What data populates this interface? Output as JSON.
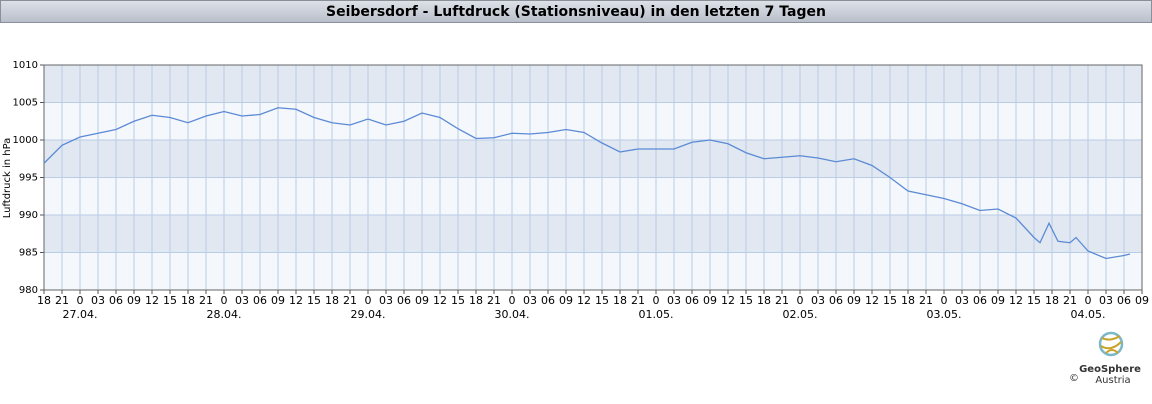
{
  "chart_data": {
    "type": "line",
    "title": "Seibersdorf - Luftdruck (Stationsniveau) in den letzten 7 Tagen",
    "ylabel": "Luftdruck in hPa",
    "color": "#5b8ad6",
    "grid": true,
    "xlim": [
      0,
      183
    ],
    "ylim": [
      980,
      1010
    ],
    "yticks": [
      980,
      985,
      990,
      995,
      1000,
      1005,
      1010
    ],
    "xticks": [
      {
        "value": 0,
        "label": "18"
      },
      {
        "value": 3,
        "label": "21"
      },
      {
        "value": 6,
        "label": "0"
      },
      {
        "value": 9,
        "label": "03"
      },
      {
        "value": 12,
        "label": "06"
      },
      {
        "value": 15,
        "label": "09"
      },
      {
        "value": 18,
        "label": "12"
      },
      {
        "value": 21,
        "label": "15"
      },
      {
        "value": 24,
        "label": "18"
      },
      {
        "value": 27,
        "label": "21"
      },
      {
        "value": 30,
        "label": "0"
      },
      {
        "value": 33,
        "label": "03"
      },
      {
        "value": 36,
        "label": "06"
      },
      {
        "value": 39,
        "label": "09"
      },
      {
        "value": 42,
        "label": "12"
      },
      {
        "value": 45,
        "label": "15"
      },
      {
        "value": 48,
        "label": "18"
      },
      {
        "value": 51,
        "label": "21"
      },
      {
        "value": 54,
        "label": "0"
      },
      {
        "value": 57,
        "label": "03"
      },
      {
        "value": 60,
        "label": "06"
      },
      {
        "value": 63,
        "label": "09"
      },
      {
        "value": 66,
        "label": "12"
      },
      {
        "value": 69,
        "label": "15"
      },
      {
        "value": 72,
        "label": "18"
      },
      {
        "value": 75,
        "label": "21"
      },
      {
        "value": 78,
        "label": "0"
      },
      {
        "value": 81,
        "label": "03"
      },
      {
        "value": 84,
        "label": "06"
      },
      {
        "value": 87,
        "label": "09"
      },
      {
        "value": 90,
        "label": "12"
      },
      {
        "value": 93,
        "label": "15"
      },
      {
        "value": 96,
        "label": "18"
      },
      {
        "value": 99,
        "label": "21"
      },
      {
        "value": 102,
        "label": "0"
      },
      {
        "value": 105,
        "label": "03"
      },
      {
        "value": 108,
        "label": "06"
      },
      {
        "value": 111,
        "label": "09"
      },
      {
        "value": 114,
        "label": "12"
      },
      {
        "value": 117,
        "label": "15"
      },
      {
        "value": 120,
        "label": "18"
      },
      {
        "value": 123,
        "label": "21"
      },
      {
        "value": 126,
        "label": "0"
      },
      {
        "value": 129,
        "label": "03"
      },
      {
        "value": 132,
        "label": "06"
      },
      {
        "value": 135,
        "label": "09"
      },
      {
        "value": 138,
        "label": "12"
      },
      {
        "value": 141,
        "label": "15"
      },
      {
        "value": 144,
        "label": "18"
      },
      {
        "value": 147,
        "label": "21"
      },
      {
        "value": 150,
        "label": "0"
      },
      {
        "value": 153,
        "label": "03"
      },
      {
        "value": 156,
        "label": "06"
      },
      {
        "value": 159,
        "label": "09"
      },
      {
        "value": 162,
        "label": "12"
      },
      {
        "value": 165,
        "label": "15"
      },
      {
        "value": 168,
        "label": "18"
      },
      {
        "value": 171,
        "label": "21"
      },
      {
        "value": 174,
        "label": "0"
      },
      {
        "value": 177,
        "label": "03"
      },
      {
        "value": 180,
        "label": "06"
      },
      {
        "value": 183,
        "label": "09"
      }
    ],
    "date_labels": [
      {
        "value": 6,
        "label": "27.04."
      },
      {
        "value": 30,
        "label": "28.04."
      },
      {
        "value": 54,
        "label": "29.04."
      },
      {
        "value": 78,
        "label": "30.04."
      },
      {
        "value": 102,
        "label": "01.05."
      },
      {
        "value": 126,
        "label": "02.05."
      },
      {
        "value": 150,
        "label": "03.05."
      },
      {
        "value": 174,
        "label": "04.05."
      }
    ],
    "x": [
      0,
      3,
      6,
      9,
      12,
      15,
      18,
      21,
      24,
      27,
      30,
      33,
      36,
      39,
      42,
      45,
      48,
      51,
      54,
      57,
      60,
      63,
      66,
      69,
      72,
      75,
      78,
      81,
      84,
      87,
      90,
      93,
      96,
      99,
      102,
      105,
      108,
      111,
      114,
      117,
      120,
      123,
      126,
      129,
      132,
      135,
      138,
      141,
      144,
      147,
      150,
      153,
      156,
      159,
      162,
      165,
      166,
      167.5,
      169,
      171,
      172,
      174,
      177,
      180,
      181
    ],
    "values": [
      996.9,
      999.3,
      1000.4,
      1000.9,
      1001.4,
      1002.5,
      1003.3,
      1003.0,
      1002.3,
      1003.2,
      1003.8,
      1003.2,
      1003.4,
      1004.3,
      1004.1,
      1003.0,
      1002.3,
      1002.0,
      1002.8,
      1002.0,
      1002.5,
      1003.6,
      1003.0,
      1001.5,
      1000.2,
      1000.3,
      1000.9,
      1000.8,
      1001.0,
      1001.4,
      1001.0,
      999.6,
      998.4,
      998.8,
      998.8,
      998.8,
      999.7,
      1000.0,
      999.5,
      998.3,
      997.5,
      997.7,
      997.9,
      997.6,
      997.1,
      997.5,
      996.6,
      995.0,
      993.2,
      992.7,
      992.2,
      991.5,
      990.6,
      990.8,
      989.6,
      987.0,
      986.3,
      988.9,
      986.5,
      986.3,
      987.0,
      985.2,
      984.2,
      984.6,
      984.8
    ]
  },
  "footer": {
    "brand": "GeoSphere",
    "org": "Austria",
    "copyright": "©"
  }
}
